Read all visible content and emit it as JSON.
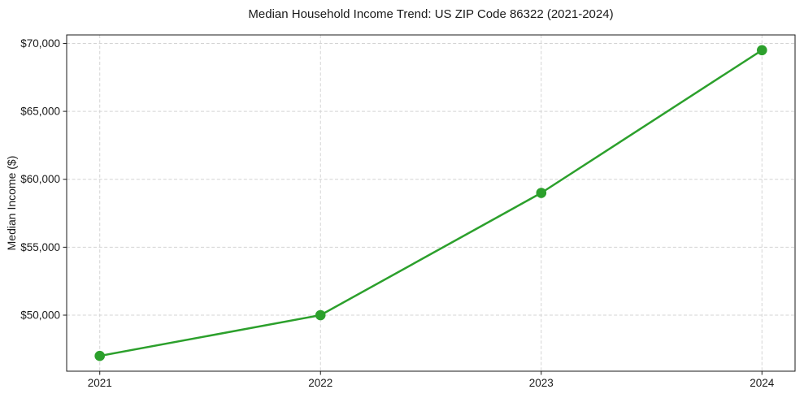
{
  "page": {
    "background": "#ffffff"
  },
  "chart_data": {
    "type": "line",
    "title": "Median Household Income Trend: US ZIP Code 86322 (2021-2024)",
    "xlabel": "",
    "ylabel": "Median Income ($)",
    "x": [
      2021,
      2022,
      2023,
      2024
    ],
    "x_tick_labels": [
      "2021",
      "2022",
      "2023",
      "2024"
    ],
    "series": [
      {
        "name": "Median Household Income",
        "values": [
          47000,
          50000,
          59000,
          69500
        ],
        "color": "#2ca02c",
        "marker": "circle",
        "line_style": "solid"
      }
    ],
    "y_ticks": [
      {
        "value": 50000,
        "label": "$50,000"
      },
      {
        "value": 55000,
        "label": "$55,000"
      },
      {
        "value": 60000,
        "label": "$60,000"
      },
      {
        "value": 65000,
        "label": "$65,000"
      },
      {
        "value": 70000,
        "label": "$70,000"
      }
    ],
    "xlim": [
      2020.85,
      2024.15
    ],
    "ylim": [
      45875,
      70625
    ],
    "grid": true,
    "grid_style": "dashed",
    "legend": "none",
    "colors": {
      "line": "#2ca02c",
      "grid": "#d4d4d4",
      "spine": "#1a1a1a",
      "text": "#1a1a1a"
    }
  }
}
